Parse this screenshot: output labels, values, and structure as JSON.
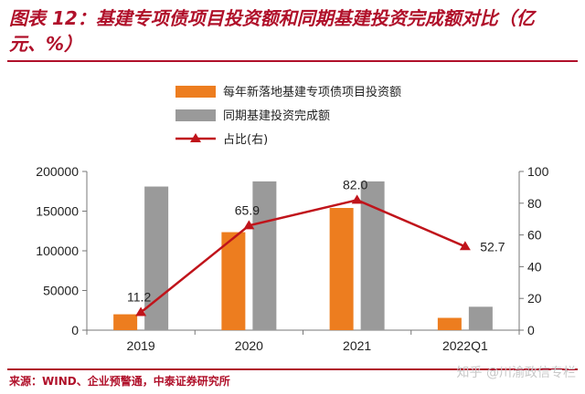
{
  "title": {
    "line1": "图表 12：基建专项债项目投资额和同期基建投资完成额对比（亿",
    "line2": "元、%）"
  },
  "source": "来源：WIND、企业预警通，中泰证券研究所",
  "watermark": "知乎 @川渝政信专栏",
  "colors": {
    "title": "#b0102a",
    "bar_special_bond": "#ed7d1f",
    "bar_completed": "#9a9a9a",
    "line_ratio": "#c0141b"
  },
  "chart_data": {
    "type": "bar",
    "categories": [
      "2019",
      "2020",
      "2021",
      "2022Q1"
    ],
    "series": [
      {
        "name": "每年新落地基建专项债项目投资额",
        "type": "bar",
        "axis": "left",
        "values": [
          20000,
          123500,
          154000,
          15500
        ]
      },
      {
        "name": "同期基建投资完成额",
        "type": "bar",
        "axis": "left",
        "values": [
          181000,
          187500,
          187500,
          29500
        ]
      },
      {
        "name": "占比(右)",
        "type": "line",
        "axis": "right",
        "values": [
          11.2,
          65.9,
          82.0,
          52.7
        ],
        "labels": [
          "11.2",
          "65.9",
          "82.0",
          "52.7"
        ]
      }
    ],
    "y_left": {
      "ylim": [
        0,
        200000
      ],
      "ticks": [
        "0",
        "50000",
        "100000",
        "150000",
        "200000"
      ]
    },
    "y_right": {
      "ylim": [
        0,
        100
      ],
      "ticks": [
        "0",
        "20",
        "40",
        "60",
        "80",
        "100"
      ]
    },
    "grid": false,
    "legend": "top-center"
  }
}
